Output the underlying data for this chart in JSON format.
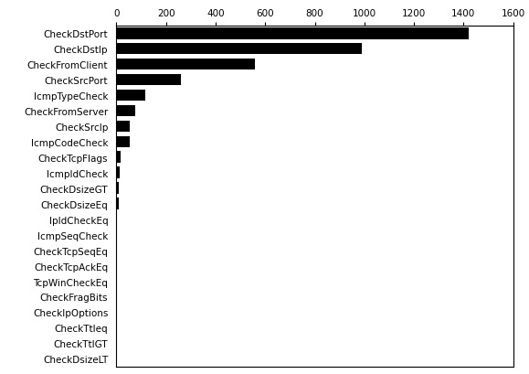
{
  "categories": [
    "CheckDstPort",
    "CheckDstIp",
    "CheckFromClient",
    "CheckSrcPort",
    "IcmpTypeCheck",
    "CheckFromServer",
    "CheckSrcIp",
    "IcmpCodeCheck",
    "CheckTcpFlags",
    "IcmpIdCheck",
    "CheckDsizeGT",
    "CheckDsizeEq",
    "IpIdCheckEq",
    "IcmpSeqCheck",
    "CheckTcpSeqEq",
    "CheckTcpAckEq",
    "TcpWinCheckEq",
    "CheckFragBits",
    "CheckIpOptions",
    "CheckTtleq",
    "CheckTtlGT",
    "CheckDsizeLT"
  ],
  "values": [
    1420,
    990,
    560,
    260,
    115,
    75,
    55,
    55,
    18,
    13,
    10,
    9,
    4,
    2,
    2,
    2,
    1,
    1,
    1,
    1,
    1,
    1
  ],
  "bar_color": "#000000",
  "xlim": [
    0,
    1600
  ],
  "xticks": [
    0,
    200,
    400,
    600,
    800,
    1000,
    1200,
    1400,
    1600
  ],
  "background_color": "#ffffff",
  "bar_height": 0.75,
  "fontsize": 7.5
}
